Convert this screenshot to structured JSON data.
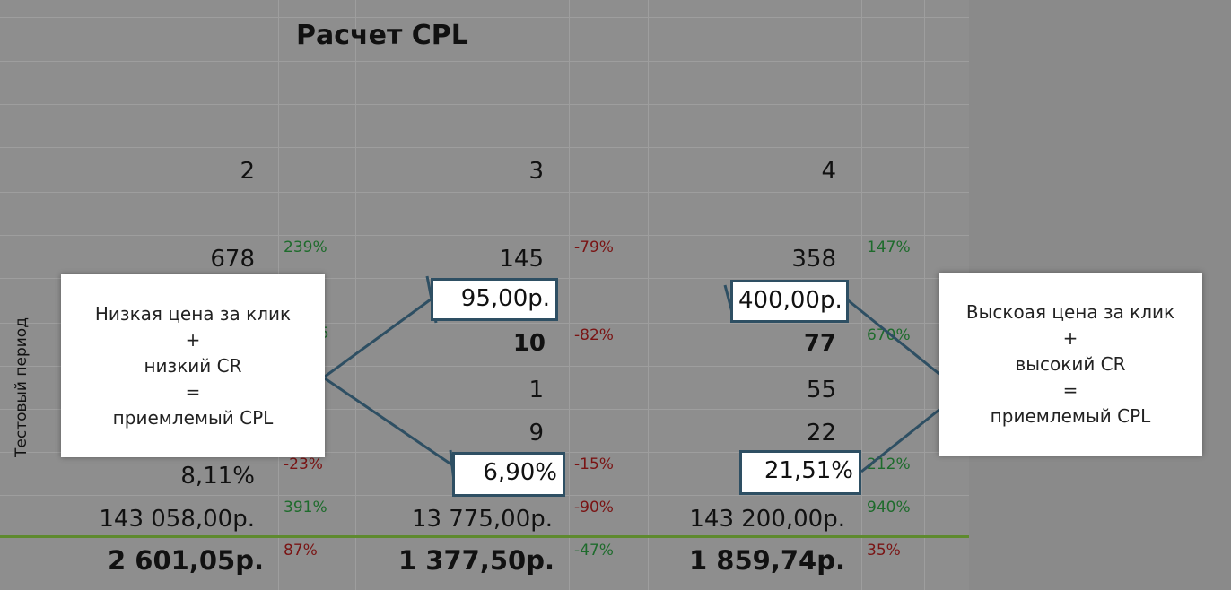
{
  "title": "Расчет CPL",
  "row_label": "Тестовый период",
  "columns": [
    {
      "number": "2",
      "impressions": "678",
      "impressions_pct": "239%",
      "cr": "8,11%",
      "cr_pct": "-23%",
      "cost": "143 058,00р.",
      "cost_pct": "391%",
      "cpl": "2 601,05р.",
      "cpl_pct": "87%"
    },
    {
      "number": "3",
      "impressions": "145",
      "impressions_pct": "-79%",
      "cpc": "95,00р.",
      "clicks": "10",
      "clicks_pct": "-82%",
      "row_a": "1",
      "row_b": "9",
      "cr": "6,90%",
      "cr_pct": "-15%",
      "cost": "13 775,00р.",
      "cost_pct": "-90%",
      "cpl": "1 377,50р.",
      "cpl_pct": "-47%"
    },
    {
      "number": "4",
      "impressions": "358",
      "impressions_pct": "147%",
      "cpc": "400,00р.",
      "clicks": "77",
      "clicks_pct": "670%",
      "row_a": "55",
      "row_b": "22",
      "cr": "21,51%",
      "cr_pct": "212%",
      "cost": "143 200,00р.",
      "cost_pct": "940%",
      "cpl": "1 859,74р.",
      "cpl_pct": "35%"
    }
  ],
  "partial_pct": "5",
  "callout_left": {
    "line1": "Низкая цена за клик",
    "line2": "+",
    "line3": "низкий CR",
    "line4": "=",
    "line5": "приемлемый CPL"
  },
  "callout_right": {
    "line1": "Выскоая цена за клик",
    "line2": "+",
    "line3": "высокий CR",
    "line4": "=",
    "line5": "приемлемый CPL"
  },
  "colors": {
    "positive": "#1e6b2c",
    "negative": "#7a1414",
    "annotation": "#2e4f63",
    "divider": "#5e8a2e"
  }
}
